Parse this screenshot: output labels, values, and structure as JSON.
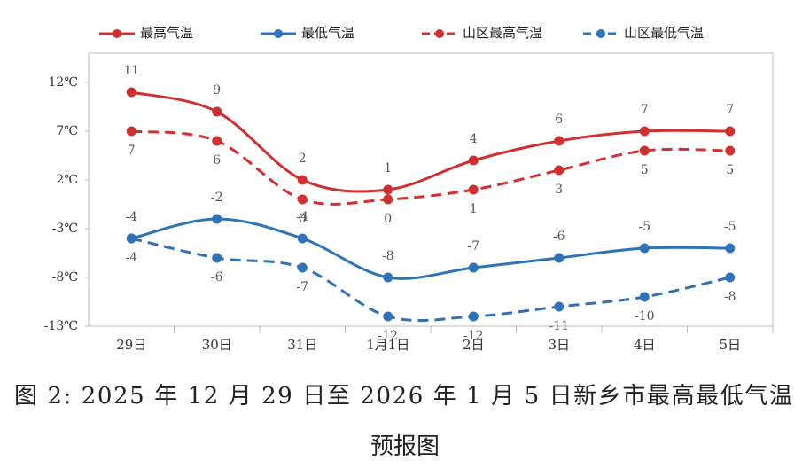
{
  "chart_data": {
    "type": "line",
    "caption": [
      "图 2: 2025 年 12 月 29 日至 2026 年 1 月 5 日新乡市最高最低气温",
      "预报图"
    ],
    "categories": [
      "29日",
      "30日",
      "31日",
      "1月1日",
      "2日",
      "3日",
      "4日",
      "5日"
    ],
    "series": [
      {
        "name": "最高气温",
        "color": "#d03030",
        "line_style": "solid",
        "values": [
          11,
          9,
          2,
          1,
          4,
          6,
          7,
          7
        ]
      },
      {
        "name": "最低气温",
        "color": "#2e72b8",
        "line_style": "solid",
        "values": [
          -4,
          -2,
          -4,
          -8,
          -7,
          -6,
          -5,
          -5
        ]
      },
      {
        "name": "山区最高气温",
        "color": "#d03030",
        "line_style": "dashed",
        "values": [
          7,
          6,
          0,
          0,
          1,
          3,
          5,
          5
        ]
      },
      {
        "name": "山区最低气温",
        "color": "#2e72b8",
        "line_style": "dashed",
        "values": [
          -4,
          -6,
          -7,
          -12,
          -12,
          -11,
          -10,
          -8
        ]
      }
    ],
    "ylim": [
      -13,
      15
    ],
    "yticks": [
      {
        "value": 12,
        "label": "12℃"
      },
      {
        "value": 7,
        "label": "7℃"
      },
      {
        "value": 2,
        "label": "2℃"
      },
      {
        "value": -3,
        "label": "-3℃"
      },
      {
        "value": -8,
        "label": "-8℃"
      },
      {
        "value": -13,
        "label": "-13℃"
      }
    ],
    "grid": false,
    "smooth": true,
    "legend": "top"
  }
}
